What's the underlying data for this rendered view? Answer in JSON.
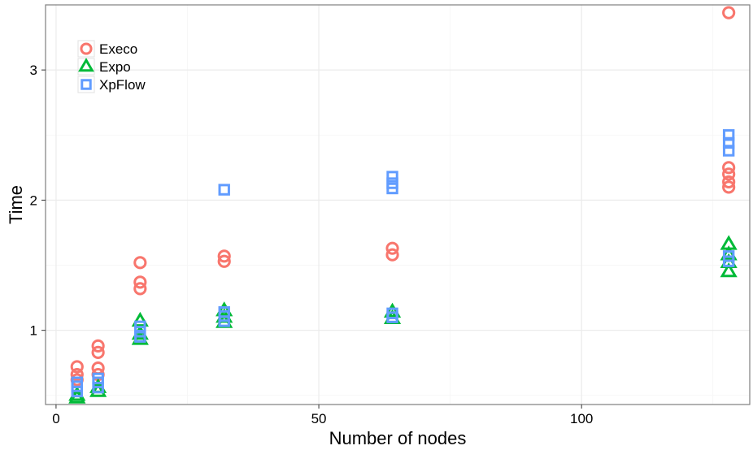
{
  "chart_data": {
    "type": "scatter",
    "xlabel": "Number of nodes",
    "ylabel": "Time",
    "xlim": [
      -2,
      132
    ],
    "ylim": [
      0.43,
      3.5
    ],
    "x_ticks": [
      0,
      50,
      100
    ],
    "x_tick_labels": [
      "0",
      "50",
      "100"
    ],
    "y_ticks": [
      1,
      2,
      3
    ],
    "y_tick_labels": [
      "1",
      "2",
      "3"
    ],
    "grid": true,
    "legend_position": "top-left",
    "series": [
      {
        "name": "Execo",
        "marker": "circle",
        "color": "#F8766D",
        "points": [
          [
            4,
            0.62
          ],
          [
            4,
            0.66
          ],
          [
            4,
            0.72
          ],
          [
            8,
            0.66
          ],
          [
            8,
            0.71
          ],
          [
            8,
            0.83
          ],
          [
            8,
            0.88
          ],
          [
            16,
            1.32
          ],
          [
            16,
            1.37
          ],
          [
            16,
            1.52
          ],
          [
            32,
            1.53
          ],
          [
            32,
            1.57
          ],
          [
            64,
            1.58
          ],
          [
            64,
            1.63
          ],
          [
            128,
            2.1
          ],
          [
            128,
            2.14
          ],
          [
            128,
            2.2
          ],
          [
            128,
            2.25
          ],
          [
            128,
            3.44
          ]
        ]
      },
      {
        "name": "Expo",
        "marker": "triangle",
        "color": "#00BA38",
        "points": [
          [
            4,
            0.48
          ],
          [
            4,
            0.5
          ],
          [
            8,
            0.53
          ],
          [
            8,
            0.56
          ],
          [
            16,
            0.93
          ],
          [
            16,
            0.97
          ],
          [
            16,
            1.07
          ],
          [
            32,
            1.06
          ],
          [
            32,
            1.1
          ],
          [
            32,
            1.15
          ],
          [
            64,
            1.09
          ],
          [
            64,
            1.14
          ],
          [
            128,
            1.45
          ],
          [
            128,
            1.52
          ],
          [
            128,
            1.58
          ],
          [
            128,
            1.66
          ]
        ]
      },
      {
        "name": "XpFlow",
        "marker": "square",
        "color": "#619CFF",
        "points": [
          [
            4,
            0.53
          ],
          [
            4,
            0.57
          ],
          [
            4,
            0.6
          ],
          [
            8,
            0.56
          ],
          [
            8,
            0.6
          ],
          [
            8,
            0.63
          ],
          [
            16,
            0.95
          ],
          [
            16,
            0.99
          ],
          [
            16,
            1.03
          ],
          [
            32,
            1.07
          ],
          [
            32,
            1.11
          ],
          [
            32,
            1.14
          ],
          [
            32,
            2.08
          ],
          [
            64,
            1.1
          ],
          [
            64,
            1.13
          ],
          [
            64,
            2.09
          ],
          [
            64,
            2.13
          ],
          [
            64,
            2.18
          ],
          [
            128,
            1.53
          ],
          [
            128,
            1.57
          ],
          [
            128,
            2.38
          ],
          [
            128,
            2.44
          ],
          [
            128,
            2.5
          ]
        ]
      }
    ]
  }
}
